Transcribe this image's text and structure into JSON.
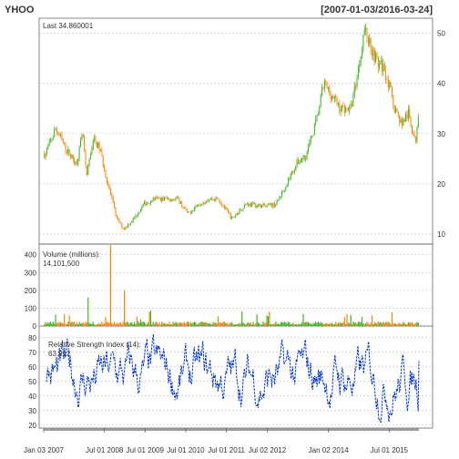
{
  "chart_data": {
    "symbol": "YHOO",
    "date_range": "[2007-01-03/2016-03-24]",
    "x_tick_labels": [
      "Jan 03 2007",
      "Jul 01 2008",
      "Jul 01 2009",
      "Jul 01 2010",
      "Jul 01 2011",
      "Jul 02 2012",
      "Jan 02 2014",
      "Jul 01 2015"
    ],
    "panels": [
      {
        "type": "candlestick",
        "last_label": "Last 34.860001",
        "y_ticks": [
          10,
          20,
          30,
          40,
          50
        ],
        "ylim": [
          8,
          53
        ],
        "price_path": [
          [
            "2007-01",
            26
          ],
          [
            "2007-04",
            31
          ],
          [
            "2007-07",
            27
          ],
          [
            "2007-10",
            24
          ],
          [
            "2007-12",
            30
          ],
          [
            "2008-01",
            21
          ],
          [
            "2008-03",
            29
          ],
          [
            "2008-05",
            27
          ],
          [
            "2008-07",
            21
          ],
          [
            "2008-10",
            13
          ],
          [
            "2008-12",
            11
          ],
          [
            "2009-03",
            13
          ],
          [
            "2009-06",
            16
          ],
          [
            "2009-09",
            17
          ],
          [
            "2009-12",
            17
          ],
          [
            "2010-04",
            17
          ],
          [
            "2010-07",
            14
          ],
          [
            "2010-10",
            16
          ],
          [
            "2011-01",
            17
          ],
          [
            "2011-04",
            17
          ],
          [
            "2011-08",
            13
          ],
          [
            "2011-12",
            16
          ],
          [
            "2012-06",
            15.5
          ],
          [
            "2012-09",
            16
          ],
          [
            "2012-12",
            20
          ],
          [
            "2013-03",
            24
          ],
          [
            "2013-06",
            26
          ],
          [
            "2013-09",
            33
          ],
          [
            "2013-11",
            40
          ],
          [
            "2014-01",
            38
          ],
          [
            "2014-04",
            35
          ],
          [
            "2014-07",
            35
          ],
          [
            "2014-09",
            42
          ],
          [
            "2014-11",
            51
          ],
          [
            "2014-12",
            49
          ],
          [
            "2015-03",
            44
          ],
          [
            "2015-05",
            43
          ],
          [
            "2015-08",
            35
          ],
          [
            "2015-10",
            32
          ],
          [
            "2015-12",
            34
          ],
          [
            "2016-02",
            28
          ],
          [
            "2016-03",
            34.86
          ]
        ]
      },
      {
        "type": "volume",
        "label": "Volume (millions):",
        "last_value": "14,101,500",
        "y_ticks": [
          0,
          100,
          200,
          300,
          400
        ],
        "ylim": [
          0,
          460
        ]
      },
      {
        "type": "rsi",
        "label": "Relative Strength Index (14):",
        "last_value": "63.912",
        "y_ticks": [
          20,
          30,
          40,
          50,
          60,
          70,
          80
        ],
        "ylim": [
          18,
          88
        ]
      }
    ]
  },
  "colors": {
    "up": "#3cb31e",
    "down": "#ff8000",
    "rsi": "#0033cc",
    "grid": "#c0c0c0",
    "label_green": "#00cc00"
  }
}
